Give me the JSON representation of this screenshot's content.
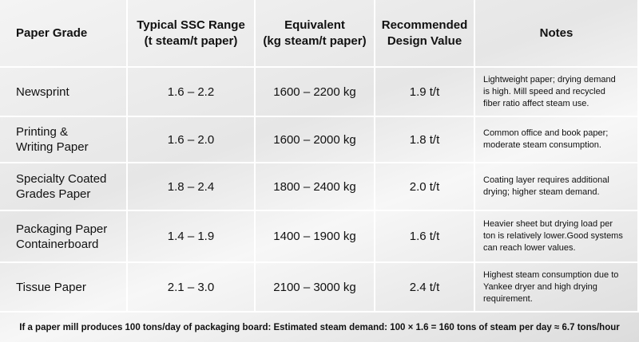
{
  "table": {
    "header": [
      [
        "Paper Grade"
      ],
      [
        "Typical SSC Range",
        "(t steam/t paper)"
      ],
      [
        "Equivalent",
        "(kg steam/t paper)"
      ],
      [
        "Recommended",
        "Design Value"
      ],
      [
        "Notes"
      ]
    ],
    "rows": [
      [
        [
          "Newsprint"
        ],
        [
          "1.6 – 2.2"
        ],
        [
          "1600 – 2200 kg"
        ],
        [
          "1.9 t/t"
        ],
        [
          "Lightweight paper; drying demand",
          "is high. Mill speed and recycled",
          "fiber ratio affect steam use."
        ]
      ],
      [
        [
          "Printing &",
          "Writing Paper"
        ],
        [
          "1.6 – 2.0"
        ],
        [
          "1600 – 2000 kg"
        ],
        [
          "1.8 t/t"
        ],
        [
          "Common office and book paper;",
          "moderate steam consumption."
        ]
      ],
      [
        [
          "Specialty Coated",
          "Grades Paper"
        ],
        [
          "1.8 – 2.4"
        ],
        [
          "1800 – 2400 kg"
        ],
        [
          "2.0 t/t"
        ],
        [
          "Coating layer requires additional",
          "drying; higher steam demand."
        ]
      ],
      [
        [
          "Packaging Paper",
          "Containerboard"
        ],
        [
          "1.4 – 1.9"
        ],
        [
          "1400 – 1900 kg"
        ],
        [
          "1.6 t/t"
        ],
        [
          "Heavier sheet but drying load per",
          "ton is relatively lower.Good systems",
          "can reach lower values."
        ]
      ],
      [
        [
          "Tissue Paper"
        ],
        [
          "2.1 – 3.0"
        ],
        [
          "2100 – 3000 kg"
        ],
        [
          "2.4 t/t"
        ],
        [
          "Highest steam consumption due to",
          "Yankee dryer and high drying",
          "requirement."
        ]
      ]
    ]
  },
  "footer": "If a paper mill produces 100 tons/day of packaging board: Estimated steam demand: 100 × 1.6 = 160 tons of steam per day ≈ 6.7 tons/hour"
}
